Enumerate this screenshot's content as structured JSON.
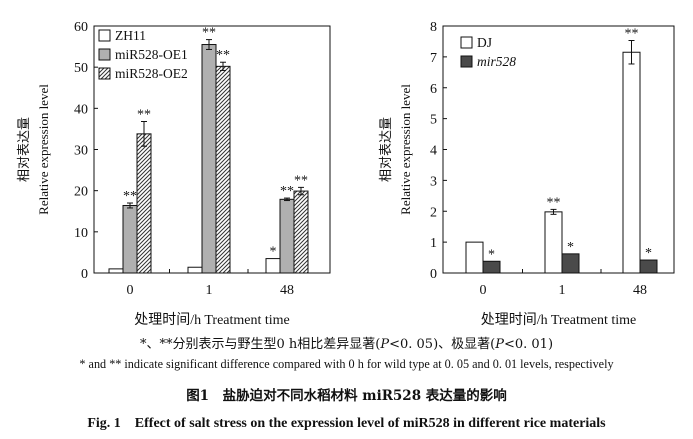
{
  "figure": {
    "note_cn_prefix": "*、**分别表示与野生型0 h相比差异显著(",
    "note_cn_p05": "P",
    "note_cn_mid": "<0. 05)、极显著(",
    "note_cn_p01": "P",
    "note_cn_suffix": "<0. 01)",
    "note_en": "* and ** indicate significant difference compared with 0 h for wild type at 0. 05 and 0. 01 levels, respectively",
    "caption_cn": "图1　盐胁迫对不同水稻材料 miR528 表达量的影响",
    "caption_en": "Fig. 1　Effect of salt stress on the expression level of miR528 in different rice materials"
  },
  "chart_data": [
    {
      "type": "bar",
      "categories": [
        "0",
        "1",
        "48"
      ],
      "xlabel": "处理时间/h Treatment time",
      "ylabel_cn": "相对表达量",
      "ylabel_en": "Relative expression level",
      "ylim": [
        0,
        60
      ],
      "yticks": [
        "0",
        "10",
        "20",
        "30",
        "40",
        "50",
        "60"
      ],
      "legend_position": "top-left",
      "series": [
        {
          "name": "ZH11",
          "values": [
            1.0,
            1.4,
            3.5
          ],
          "errors": [
            0,
            0,
            0
          ],
          "sig": [
            "",
            "",
            "*"
          ],
          "style": "white"
        },
        {
          "name": "miR528-OE1",
          "values": [
            16.4,
            55.5,
            17.9
          ],
          "errors": [
            0.6,
            1.2,
            0.3
          ],
          "sig": [
            "**",
            "**",
            "**"
          ],
          "style": "gray"
        },
        {
          "name": "miR528-OE2",
          "values": [
            33.8,
            50.2,
            19.9
          ],
          "errors": [
            3.0,
            1.0,
            0.9
          ],
          "sig": [
            "**",
            "**",
            "**"
          ],
          "style": "hatch"
        }
      ]
    },
    {
      "type": "bar",
      "categories": [
        "0",
        "1",
        "48"
      ],
      "xlabel": "处理时间/h Treatment time",
      "ylabel_cn": "相对表达量",
      "ylabel_en": "Relative expression level",
      "ylim": [
        0,
        8
      ],
      "yticks": [
        "0",
        "1",
        "2",
        "3",
        "4",
        "5",
        "6",
        "7",
        "8"
      ],
      "legend_position": "top-left",
      "series": [
        {
          "name": "DJ",
          "values": [
            1.0,
            1.98,
            7.15
          ],
          "errors": [
            0,
            0.08,
            0.38
          ],
          "sig": [
            "",
            "**",
            "**"
          ],
          "style": "white"
        },
        {
          "name": "mir528",
          "values": [
            0.38,
            0.62,
            0.42
          ],
          "errors": [
            0,
            0,
            0
          ],
          "sig": [
            "*",
            "*",
            "*"
          ],
          "style": "dark"
        }
      ]
    }
  ]
}
